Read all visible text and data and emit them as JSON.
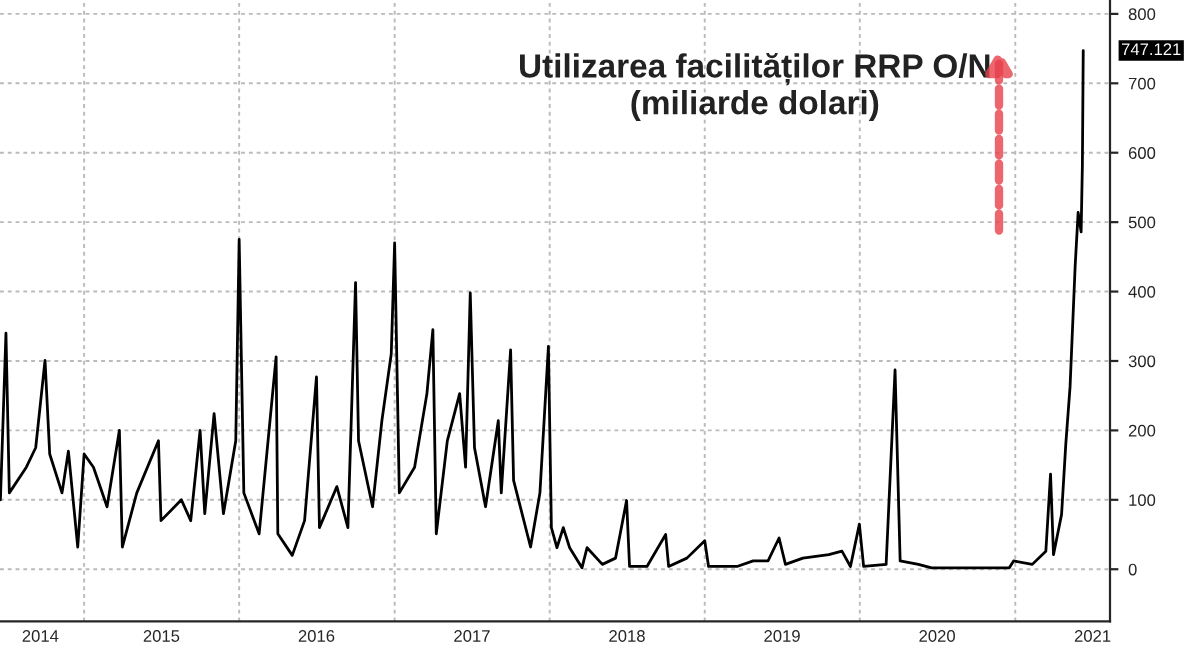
{
  "chart_data": {
    "type": "line",
    "title": "Utilizarea facilităților RRP O/N\n(miliarde dolari)",
    "x": [
      "2014-06-18",
      "2014-07-01",
      "2014-07-09",
      "2014-08-18",
      "2014-09-09",
      "2014-10-01",
      "2014-10-12",
      "2014-11-10",
      "2014-11-25",
      "2014-12-17",
      "2015-01-01",
      "2015-01-23",
      "2015-02-24",
      "2015-03-25",
      "2015-04-01",
      "2015-05-05",
      "2015-06-25",
      "2015-07-01",
      "2015-08-18",
      "2015-09-09",
      "2015-10-01",
      "2015-10-12",
      "2015-11-03",
      "2015-11-25",
      "2015-12-24",
      "2016-01-01",
      "2016-01-12",
      "2016-02-17",
      "2016-03-28",
      "2016-04-01",
      "2016-05-05",
      "2016-06-03",
      "2016-07-01",
      "2016-07-08",
      "2016-08-18",
      "2016-09-13",
      "2016-10-01",
      "2016-10-08",
      "2016-11-10",
      "2016-12-02",
      "2016-12-24",
      "2017-01-01",
      "2017-01-12",
      "2017-02-17",
      "2017-03-18",
      "2017-04-01",
      "2017-04-09",
      "2017-05-05",
      "2017-06-03",
      "2017-06-17",
      "2017-06-28",
      "2017-07-08",
      "2017-08-03",
      "2017-09-02",
      "2017-09-09",
      "2017-10-01",
      "2017-10-08",
      "2017-11-17",
      "2017-12-09",
      "2017-12-29",
      "2018-01-05",
      "2018-01-18",
      "2018-02-02",
      "2018-02-17",
      "2018-03-18",
      "2018-03-30",
      "2018-05-05",
      "2018-06-05",
      "2018-07-01",
      "2018-07-08",
      "2018-08-18",
      "2018-10-01",
      "2018-10-08",
      "2018-11-20",
      "2019-01-01",
      "2019-01-10",
      "2019-03-18",
      "2019-04-25",
      "2019-05-30",
      "2019-06-25",
      "2019-07-10",
      "2019-08-20",
      "2019-10-20",
      "2019-11-20",
      "2019-12-10",
      "2019-12-31",
      "2020-01-10",
      "2020-03-03",
      "2020-03-24",
      "2020-04-05",
      "2020-05-18",
      "2020-06-18",
      "2020-12-18",
      "2020-12-28",
      "2021-02-10",
      "2021-03-14",
      "2021-03-25",
      "2021-04-01",
      "2021-04-20",
      "2021-04-30",
      "2021-05-10",
      "2021-05-22",
      "2021-05-29",
      "2021-06-05",
      "2021-06-08",
      "2021-06-10"
    ],
    "series": [
      {
        "color": "#000000",
        "values": [
          100,
          340,
          110,
          147,
          175,
          301,
          166,
          110,
          170,
          32,
          166,
          147,
          90,
          200,
          32,
          110,
          185,
          70,
          100,
          70,
          200,
          80,
          224,
          80,
          185,
          475,
          110,
          51,
          306,
          51,
          20,
          70,
          277,
          60,
          119,
          60,
          413,
          185,
          90,
          214,
          310,
          470,
          110,
          147,
          253,
          345,
          51,
          185,
          253,
          147,
          398,
          175,
          90,
          214,
          110,
          316,
          128,
          32,
          110,
          321,
          60,
          31,
          60,
          31,
          2,
          31,
          7,
          16,
          99,
          4,
          4,
          50,
          4,
          16,
          41,
          4,
          4,
          12,
          12,
          45,
          7,
          16,
          21,
          26,
          4,
          65,
          4,
          7,
          287,
          12,
          7,
          2,
          2,
          12,
          7,
          26,
          137,
          21,
          79,
          181,
          263,
          437,
          514,
          486,
          582,
          747.121
        ]
      }
    ],
    "annotations": [
      {
        "text": "747.121",
        "x": "2021-06-10",
        "y": 747.121
      }
    ],
    "xlim": [
      "2014-06-17",
      "2021-08-12"
    ],
    "xticks": [
      {
        "value": "2014-09-20",
        "label": "2014"
      },
      {
        "value": "2015-01-01",
        "label": null
      },
      {
        "value": "2015-07-02",
        "label": "2015"
      },
      {
        "value": "2016-01-01",
        "label": null
      },
      {
        "value": "2016-07-01",
        "label": "2016"
      },
      {
        "value": "2017-01-01",
        "label": null
      },
      {
        "value": "2017-07-02",
        "label": "2017"
      },
      {
        "value": "2018-01-01",
        "label": null
      },
      {
        "value": "2018-07-02",
        "label": "2018"
      },
      {
        "value": "2019-01-01",
        "label": null
      },
      {
        "value": "2019-07-02",
        "label": "2019"
      },
      {
        "value": "2020-01-01",
        "label": null
      },
      {
        "value": "2020-07-01",
        "label": "2020"
      },
      {
        "value": "2021-01-01",
        "label": null
      },
      {
        "value": "2021-07-02",
        "label": "2021"
      }
    ],
    "ylim": [
      -75,
      820
    ],
    "yticks": [
      0,
      100,
      200,
      300,
      400,
      500,
      600,
      700,
      800
    ],
    "grid": true,
    "legend": false
  }
}
